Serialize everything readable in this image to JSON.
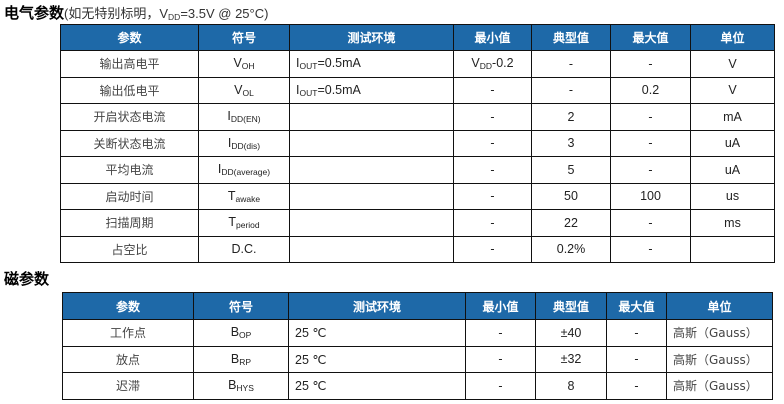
{
  "electrical": {
    "title": "电气参数",
    "note_prefix": "(如无特别标明，V",
    "note_sub": "DD",
    "note_suffix": "=3.5V @ 25°C)",
    "headers": [
      "参数",
      "符号",
      "测试环境",
      "最小值",
      "典型值",
      "最大值",
      "单位"
    ],
    "rows": [
      {
        "param": "输出高电平",
        "sym": "V",
        "sub": "OH",
        "cond": "I",
        "cond_sub": "OUT",
        "cond_rest": "=0.5mA",
        "min": "V",
        "min_sub": "DD",
        "min_rest": "-0.2",
        "typ": "-",
        "max": "-",
        "unit": "V"
      },
      {
        "param": "输出低电平",
        "sym": "V",
        "sub": "OL",
        "cond": "I",
        "cond_sub": "OUT",
        "cond_rest": "=0.5mA",
        "min": "-",
        "typ": "-",
        "max": "0.2",
        "unit": "V"
      },
      {
        "param": "开启状态电流",
        "sym": "I",
        "sub": "DD(EN)",
        "cond": "",
        "min": "-",
        "typ": "2",
        "max": "-",
        "unit": "mA"
      },
      {
        "param": "关断状态电流",
        "sym": "I",
        "sub": "DD(dis)",
        "cond": "",
        "min": "-",
        "typ": "3",
        "max": "-",
        "unit": "uA"
      },
      {
        "param": "平均电流",
        "sym": "I",
        "sub": "DD(average)",
        "cond": "",
        "min": "-",
        "typ": "5",
        "max": "-",
        "unit": "uA"
      },
      {
        "param": "启动时间",
        "sym": "T",
        "sub": "awake",
        "cond": "",
        "min": "-",
        "typ": "50",
        "max": "100",
        "unit": "us"
      },
      {
        "param": "扫描周期",
        "sym": "T",
        "sub": "period",
        "cond": "",
        "min": "-",
        "typ": "22",
        "max": "-",
        "unit": "ms"
      },
      {
        "param": "占空比",
        "sym": "D.C.",
        "sub": "",
        "cond": "",
        "min": "-",
        "typ": "0.2%",
        "max": "-",
        "unit": ""
      }
    ]
  },
  "magnetic": {
    "title": "磁参数",
    "headers": [
      "参数",
      "符号",
      "测试环境",
      "最小值",
      "典型值",
      "最大值",
      "单位"
    ],
    "rows": [
      {
        "param": "工作点",
        "sym": "B",
        "sub": "OP",
        "cond": "25 ℃",
        "min": "-",
        "typ": "±40",
        "max": "-",
        "unit": "高斯（Gauss）"
      },
      {
        "param": "放点",
        "sym": "B",
        "sub": "RP",
        "cond": "25 ℃",
        "min": "-",
        "typ": "±32",
        "max": "-",
        "unit": "高斯（Gauss）"
      },
      {
        "param": "迟滞",
        "sym": "B",
        "sub": "HYS",
        "cond": "25 ℃",
        "min": "-",
        "typ": "8",
        "max": "-",
        "unit": "高斯（Gauss）"
      }
    ]
  }
}
